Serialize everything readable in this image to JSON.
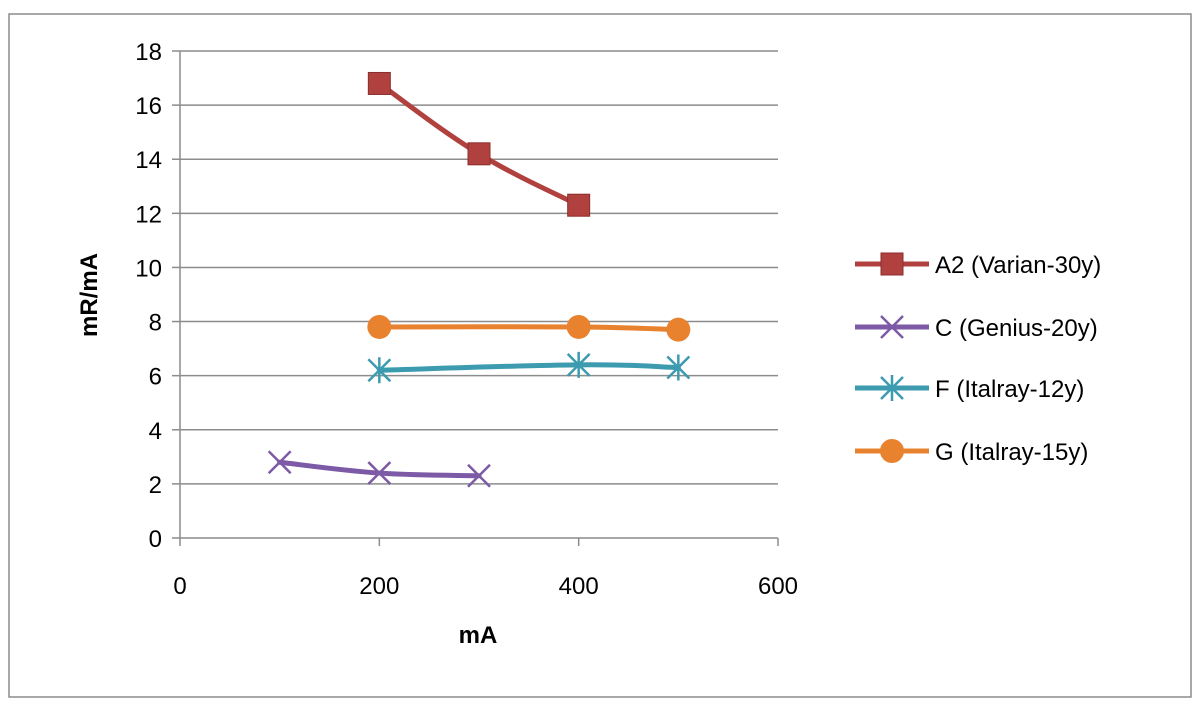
{
  "chart_data": {
    "type": "line",
    "title": "",
    "xlabel": "mA",
    "ylabel": "mR/mA",
    "xlim": [
      0,
      600
    ],
    "ylim": [
      0,
      18
    ],
    "x_ticks": [
      0,
      200,
      400,
      600
    ],
    "y_ticks": [
      0,
      2,
      4,
      6,
      8,
      10,
      12,
      14,
      16,
      18
    ],
    "grid": "horizontal",
    "legend_position": "right",
    "series": [
      {
        "name": "A2 (Varian-30y)",
        "color": "#b0413e",
        "marker": "square",
        "x": [
          200,
          300,
          400
        ],
        "y": [
          16.8,
          14.2,
          12.3
        ]
      },
      {
        "name": "C (Genius-20y)",
        "color": "#7c5aa6",
        "marker": "x",
        "x": [
          100,
          200,
          300
        ],
        "y": [
          2.8,
          2.4,
          2.3
        ]
      },
      {
        "name": "F (Italray-12y)",
        "color": "#3d9bb0",
        "marker": "asterisk",
        "x": [
          200,
          400,
          500
        ],
        "y": [
          6.2,
          6.4,
          6.3
        ]
      },
      {
        "name": "G (Italray-15y)",
        "color": "#e8822f",
        "marker": "circle",
        "x": [
          200,
          400,
          500
        ],
        "y": [
          7.8,
          7.8,
          7.7
        ]
      }
    ]
  }
}
